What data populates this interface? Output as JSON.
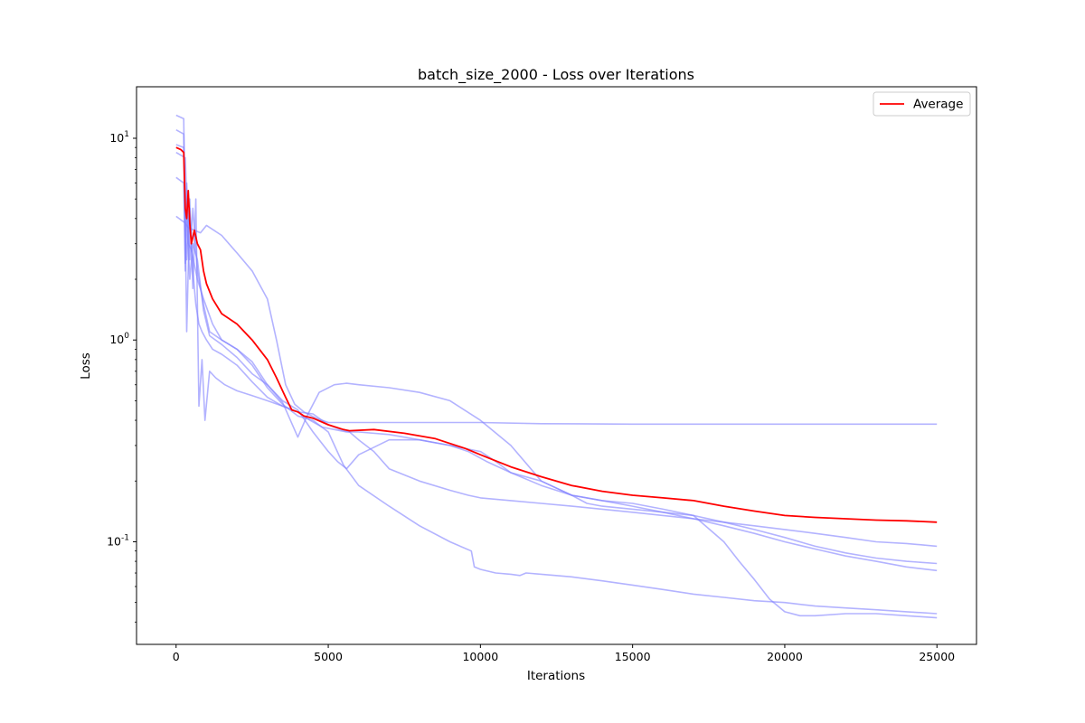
{
  "chart_data": {
    "type": "line",
    "title": "batch_size_2000 - Loss over Iterations",
    "xlabel": "Iterations",
    "ylabel": "Loss",
    "xlim": [
      -1300,
      26300
    ],
    "ylim": [
      0.031,
      18
    ],
    "yscale": "log",
    "grid": false,
    "legend_placement": "top-right",
    "x_ticks": [
      0,
      5000,
      10000,
      15000,
      20000,
      25000
    ],
    "x_tick_labels": [
      "0",
      "5000",
      "10000",
      "15000",
      "20000",
      "25000"
    ],
    "y_ticks": [
      0.1,
      1,
      10
    ],
    "y_tick_labels": [
      "10^-1",
      "10^0",
      "10^1"
    ],
    "colors": {
      "average": "#ff0000",
      "runs": "#8080ff"
    },
    "series": [
      {
        "name": "Average",
        "x": [
          0,
          150,
          250,
          300,
          350,
          400,
          450,
          500,
          600,
          700,
          800,
          900,
          1000,
          1200,
          1500,
          2000,
          2500,
          3000,
          3300,
          3600,
          3800,
          4000,
          4200,
          4500,
          5000,
          5500,
          5700,
          6500,
          7500,
          8500,
          9500,
          10000,
          11000,
          12000,
          13000,
          14000,
          15000,
          16000,
          17000,
          18000,
          19000,
          20000,
          21000,
          22000,
          23000,
          24000,
          25000
        ],
        "y": [
          9.0,
          8.8,
          8.5,
          4.5,
          4.0,
          5.5,
          3.8,
          3.0,
          3.5,
          3.0,
          2.8,
          2.2,
          1.9,
          1.6,
          1.35,
          1.2,
          1.0,
          0.8,
          0.65,
          0.52,
          0.45,
          0.44,
          0.42,
          0.41,
          0.38,
          0.36,
          0.355,
          0.36,
          0.345,
          0.325,
          0.29,
          0.27,
          0.235,
          0.21,
          0.19,
          0.178,
          0.17,
          0.165,
          0.16,
          0.15,
          0.142,
          0.135,
          0.132,
          0.13,
          0.128,
          0.127,
          0.125
        ]
      },
      {
        "x": [
          0,
          200,
          300,
          400,
          600,
          800,
          1000,
          1500,
          2000,
          2500,
          3000,
          3300,
          3600,
          3900,
          4200,
          4600,
          5000,
          6000,
          8000,
          10000,
          12000,
          15000,
          18000,
          20000,
          22000,
          25000
        ],
        "y": [
          4.1,
          3.9,
          3.8,
          3.6,
          3.5,
          3.4,
          3.7,
          3.3,
          2.7,
          2.2,
          1.6,
          1.0,
          0.6,
          0.48,
          0.44,
          0.41,
          0.39,
          0.39,
          0.39,
          0.39,
          0.385,
          0.383,
          0.383,
          0.383,
          0.383,
          0.383
        ]
      },
      {
        "x": [
          0,
          250,
          300,
          350,
          450,
          550,
          650,
          750,
          850,
          950,
          1100,
          1300,
          1600,
          2000,
          2500,
          3000,
          3500,
          4000,
          4500,
          5000,
          5400,
          5700,
          6000,
          6500,
          7000,
          8000,
          9000,
          9600,
          10000,
          11000,
          12000,
          13000,
          14000,
          15000,
          16000,
          17000,
          18000,
          19000,
          20000,
          21000,
          22000,
          23000,
          24000,
          25000
        ],
        "y": [
          13,
          12.5,
          3.5,
          2.5,
          5.0,
          1.8,
          5.0,
          0.47,
          0.8,
          0.4,
          0.7,
          0.65,
          0.6,
          0.56,
          0.53,
          0.5,
          0.47,
          0.44,
          0.43,
          0.38,
          0.36,
          0.35,
          0.32,
          0.28,
          0.23,
          0.2,
          0.18,
          0.17,
          0.165,
          0.16,
          0.155,
          0.15,
          0.145,
          0.14,
          0.135,
          0.13,
          0.125,
          0.12,
          0.115,
          0.11,
          0.105,
          0.1,
          0.098,
          0.095
        ]
      },
      {
        "x": [
          0,
          250,
          300,
          350,
          450,
          550,
          650,
          750,
          850,
          1000,
          1200,
          1500,
          2000,
          2500,
          3000,
          3500,
          4000,
          4400,
          4800,
          5200,
          5600,
          6000,
          7000,
          8000,
          9000,
          9600,
          10200,
          11000,
          12000,
          13000,
          13500,
          14000,
          15000,
          16000,
          17000,
          18000,
          19000,
          20000,
          21000,
          22000,
          23000,
          24000,
          25000
        ],
        "y": [
          11,
          10.5,
          3.8,
          1.1,
          4.5,
          2.2,
          1.5,
          1.2,
          1.1,
          1.0,
          0.9,
          0.85,
          0.75,
          0.62,
          0.52,
          0.47,
          0.44,
          0.4,
          0.37,
          0.36,
          0.35,
          0.35,
          0.34,
          0.32,
          0.3,
          0.28,
          0.25,
          0.22,
          0.2,
          0.17,
          0.155,
          0.15,
          0.145,
          0.14,
          0.135,
          0.125,
          0.115,
          0.105,
          0.095,
          0.088,
          0.083,
          0.08,
          0.078
        ]
      },
      {
        "x": [
          0,
          250,
          300,
          350,
          450,
          550,
          700,
          900,
          1100,
          1500,
          2000,
          2500,
          3000,
          3500,
          4000,
          4300,
          4700,
          5200,
          5600,
          6000,
          7000,
          8000,
          9000,
          10000,
          11000,
          12000,
          13000,
          14000,
          15000,
          16000,
          17000,
          18000,
          18500,
          19000,
          19500,
          20000,
          20500,
          21000,
          22000,
          23000,
          24000,
          25000
        ],
        "y": [
          9.3,
          9.0,
          2.4,
          4.0,
          2.0,
          3.0,
          2.5,
          1.4,
          1.05,
          0.95,
          0.82,
          0.68,
          0.6,
          0.49,
          0.33,
          0.42,
          0.55,
          0.6,
          0.61,
          0.6,
          0.58,
          0.55,
          0.5,
          0.4,
          0.3,
          0.2,
          0.17,
          0.16,
          0.155,
          0.145,
          0.135,
          0.1,
          0.08,
          0.065,
          0.052,
          0.045,
          0.043,
          0.043,
          0.044,
          0.044,
          0.043,
          0.042
        ]
      },
      {
        "x": [
          0,
          250,
          300,
          350,
          450,
          550,
          700,
          900,
          1100,
          1500,
          2000,
          2500,
          3000,
          3500,
          4000,
          4500,
          5000,
          5500,
          6000,
          7000,
          8000,
          9000,
          9700,
          9800,
          10000,
          10500,
          11000,
          11300,
          11500,
          12000,
          13000,
          14000,
          15000,
          16000,
          17000,
          18000,
          19000,
          20000,
          21000,
          22000,
          23000,
          24000,
          25000
        ],
        "y": [
          6.4,
          6.0,
          2.2,
          6.0,
          2.5,
          4.5,
          2.2,
          1.5,
          1.1,
          1.0,
          0.9,
          0.75,
          0.58,
          0.48,
          0.42,
          0.4,
          0.35,
          0.24,
          0.19,
          0.15,
          0.12,
          0.1,
          0.09,
          0.075,
          0.073,
          0.07,
          0.069,
          0.068,
          0.07,
          0.069,
          0.067,
          0.064,
          0.061,
          0.058,
          0.055,
          0.053,
          0.051,
          0.05,
          0.048,
          0.047,
          0.046,
          0.045,
          0.044
        ]
      },
      {
        "x": [
          0,
          300,
          400,
          500,
          700,
          900,
          1200,
          1500,
          2000,
          2500,
          3000,
          3500,
          4000,
          4500,
          5000,
          5300,
          5600,
          6000,
          7000,
          8000,
          9000,
          10000,
          10500,
          11000,
          12000,
          13000,
          14000,
          15000,
          16000,
          17000,
          18000,
          19000,
          20000,
          21000,
          22000,
          23000,
          24000,
          25000
        ],
        "y": [
          8.5,
          8.0,
          3.0,
          2.8,
          2.0,
          1.6,
          1.2,
          1.0,
          0.9,
          0.78,
          0.6,
          0.5,
          0.45,
          0.35,
          0.28,
          0.25,
          0.23,
          0.27,
          0.32,
          0.32,
          0.3,
          0.28,
          0.25,
          0.22,
          0.19,
          0.17,
          0.16,
          0.15,
          0.14,
          0.13,
          0.12,
          0.11,
          0.1,
          0.092,
          0.085,
          0.08,
          0.075,
          0.072
        ]
      }
    ]
  }
}
